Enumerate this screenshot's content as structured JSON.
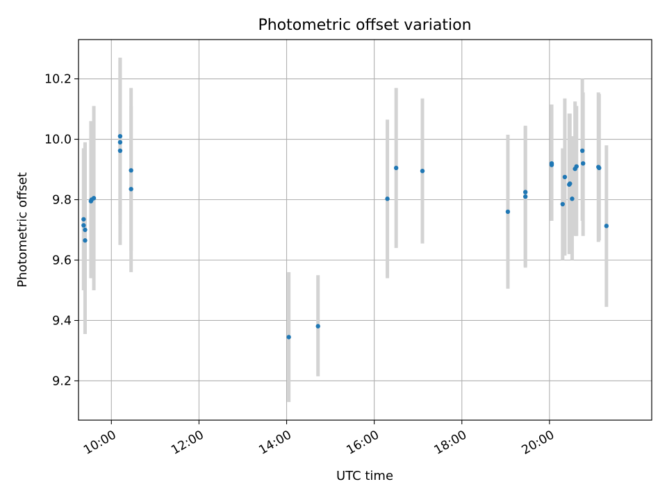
{
  "chart_data": {
    "type": "scatter",
    "title": "Photometric offset variation",
    "xlabel": "UTC time",
    "ylabel": "Photometric offset",
    "x_axis": "time (HH:MM, UTC)",
    "xlim": [
      "09:15",
      "22:20"
    ],
    "ylim": [
      9.07,
      10.33
    ],
    "x_ticks": [
      "10:00",
      "12:00",
      "14:00",
      "16:00",
      "18:00",
      "20:00"
    ],
    "y_ticks": [
      9.2,
      9.4,
      9.6,
      9.8,
      10.0,
      10.2
    ],
    "grid": true,
    "legend": "none",
    "colors": {
      "points": "#1f77b4",
      "error_bars": "#d3d3d3",
      "grid": "#b0b0b0"
    },
    "series": [
      {
        "points": [
          {
            "x": "09:22",
            "y": 9.735,
            "err_low": 9.5,
            "err_high": 9.97
          },
          {
            "x": "09:22",
            "y": 9.715,
            "err_low": 9.5,
            "err_high": 9.97
          },
          {
            "x": "09:24",
            "y": 9.7,
            "err_low": 9.5,
            "err_high": 9.99
          },
          {
            "x": "09:24",
            "y": 9.665,
            "err_low": 9.355,
            "err_high": 9.985
          },
          {
            "x": "09:32",
            "y": 9.795,
            "err_low": 9.54,
            "err_high": 10.06
          },
          {
            "x": "09:33",
            "y": 9.8,
            "err_low": 9.55,
            "err_high": 10.05
          },
          {
            "x": "09:36",
            "y": 9.805,
            "err_low": 9.5,
            "err_high": 10.11
          },
          {
            "x": "10:12",
            "y": 10.01,
            "err_low": 9.75,
            "err_high": 10.27
          },
          {
            "x": "10:12",
            "y": 9.99,
            "err_low": 9.72,
            "err_high": 10.26
          },
          {
            "x": "10:12",
            "y": 9.962,
            "err_low": 9.65,
            "err_high": 10.27
          },
          {
            "x": "10:27",
            "y": 9.897,
            "err_low": 9.63,
            "err_high": 10.17
          },
          {
            "x": "10:27",
            "y": 9.835,
            "err_low": 9.56,
            "err_high": 10.11
          },
          {
            "x": "14:03",
            "y": 9.345,
            "err_low": 9.13,
            "err_high": 9.56
          },
          {
            "x": "14:43",
            "y": 9.381,
            "err_low": 9.215,
            "err_high": 9.55
          },
          {
            "x": "16:18",
            "y": 9.803,
            "err_low": 9.54,
            "err_high": 10.065
          },
          {
            "x": "16:30",
            "y": 9.905,
            "err_low": 9.64,
            "err_high": 10.17
          },
          {
            "x": "17:06",
            "y": 9.895,
            "err_low": 9.655,
            "err_high": 10.135
          },
          {
            "x": "19:03",
            "y": 9.76,
            "err_low": 9.505,
            "err_high": 10.015
          },
          {
            "x": "19:27",
            "y": 9.825,
            "err_low": 9.575,
            "err_high": 10.045
          },
          {
            "x": "19:27",
            "y": 9.81,
            "err_low": 9.58,
            "err_high": 10.04
          },
          {
            "x": "20:03",
            "y": 9.92,
            "err_low": 9.73,
            "err_high": 10.115
          },
          {
            "x": "20:03",
            "y": 9.915,
            "err_low": 9.73,
            "err_high": 10.11
          },
          {
            "x": "20:18",
            "y": 9.785,
            "err_low": 9.6,
            "err_high": 9.97
          },
          {
            "x": "20:21",
            "y": 9.875,
            "err_low": 9.615,
            "err_high": 10.135
          },
          {
            "x": "20:27",
            "y": 9.85,
            "err_low": 9.62,
            "err_high": 10.085
          },
          {
            "x": "20:28",
            "y": 9.853,
            "err_low": 9.62,
            "err_high": 10.085
          },
          {
            "x": "20:31",
            "y": 9.803,
            "err_low": 9.6,
            "err_high": 10.01
          },
          {
            "x": "20:35",
            "y": 9.902,
            "err_low": 9.68,
            "err_high": 10.125
          },
          {
            "x": "20:37",
            "y": 9.91,
            "err_low": 9.68,
            "err_high": 10.11
          },
          {
            "x": "20:45",
            "y": 9.962,
            "err_low": 9.73,
            "err_high": 10.2
          },
          {
            "x": "20:46",
            "y": 9.92,
            "err_low": 9.68,
            "err_high": 10.155
          },
          {
            "x": "21:07",
            "y": 9.908,
            "err_low": 9.66,
            "err_high": 10.155
          },
          {
            "x": "21:08",
            "y": 9.905,
            "err_low": 9.665,
            "err_high": 10.15
          },
          {
            "x": "21:18",
            "y": 9.713,
            "err_low": 9.445,
            "err_high": 9.98
          }
        ]
      }
    ]
  }
}
